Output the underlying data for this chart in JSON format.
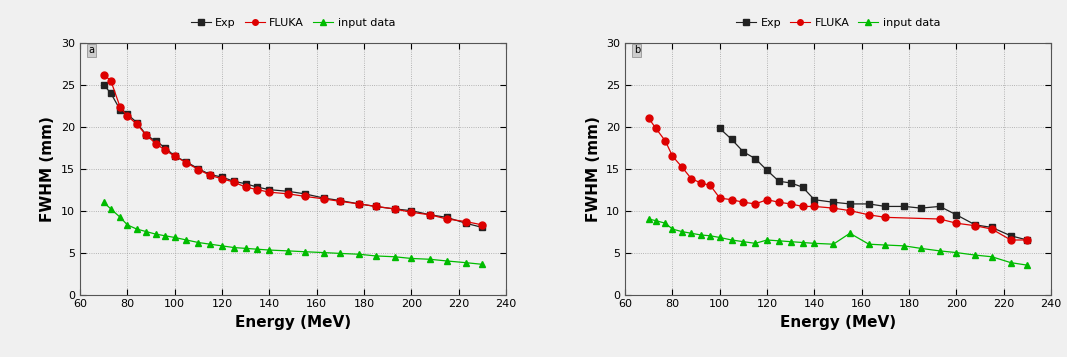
{
  "panel1": {
    "label": "a",
    "energy": [
      70,
      73,
      77,
      80,
      84,
      88,
      92,
      96,
      100,
      105,
      110,
      115,
      120,
      125,
      130,
      135,
      140,
      148,
      155,
      163,
      170,
      178,
      185,
      193,
      200,
      208,
      215,
      223,
      230
    ],
    "exp": [
      25.0,
      24.0,
      22.0,
      21.5,
      20.5,
      19.0,
      18.3,
      17.5,
      16.5,
      15.8,
      15.0,
      14.3,
      14.0,
      13.5,
      13.2,
      12.8,
      12.5,
      12.3,
      12.0,
      11.5,
      11.2,
      10.8,
      10.5,
      10.2,
      10.0,
      9.5,
      9.2,
      8.5,
      8.0
    ],
    "fluka": [
      26.2,
      25.5,
      22.3,
      21.3,
      20.3,
      19.0,
      18.0,
      17.2,
      16.5,
      15.7,
      14.9,
      14.2,
      13.8,
      13.4,
      12.8,
      12.5,
      12.2,
      12.0,
      11.7,
      11.4,
      11.1,
      10.8,
      10.5,
      10.2,
      9.8,
      9.5,
      9.0,
      8.7,
      8.3
    ],
    "input": [
      11.0,
      10.2,
      9.2,
      8.3,
      7.8,
      7.5,
      7.2,
      7.0,
      6.8,
      6.5,
      6.2,
      6.0,
      5.8,
      5.6,
      5.5,
      5.4,
      5.3,
      5.2,
      5.1,
      5.0,
      4.9,
      4.8,
      4.6,
      4.5,
      4.3,
      4.2,
      4.0,
      3.8,
      3.6
    ]
  },
  "panel2": {
    "label": "b",
    "energy_exp": [
      100,
      105,
      110,
      115,
      120,
      125,
      130,
      135,
      140,
      148,
      155,
      163,
      170,
      178,
      185,
      193,
      200,
      208,
      215,
      223,
      230
    ],
    "exp": [
      19.8,
      18.5,
      17.0,
      16.2,
      14.8,
      13.5,
      13.3,
      12.8,
      11.3,
      11.0,
      10.8,
      10.8,
      10.5,
      10.5,
      10.3,
      10.5,
      9.5,
      8.3,
      8.0,
      7.0,
      6.5
    ],
    "energy_fluka": [
      70,
      73,
      77,
      80,
      84,
      88,
      92,
      96,
      100,
      105,
      110,
      115,
      120,
      125,
      130,
      135,
      140,
      148,
      155,
      163,
      170,
      193,
      200,
      208,
      215,
      223,
      230
    ],
    "fluka": [
      21.0,
      19.8,
      18.3,
      16.5,
      15.2,
      13.8,
      13.3,
      13.0,
      11.5,
      11.3,
      11.0,
      10.8,
      11.3,
      11.0,
      10.8,
      10.5,
      10.5,
      10.3,
      10.0,
      9.5,
      9.2,
      9.0,
      8.5,
      8.2,
      7.8,
      6.5,
      6.5
    ],
    "energy_input": [
      70,
      73,
      77,
      80,
      84,
      88,
      92,
      96,
      100,
      105,
      110,
      115,
      120,
      125,
      130,
      135,
      140,
      148,
      155,
      163,
      170,
      178,
      185,
      193,
      200,
      208,
      215,
      223,
      230
    ],
    "input": [
      9.0,
      8.8,
      8.5,
      7.8,
      7.5,
      7.3,
      7.1,
      7.0,
      6.8,
      6.5,
      6.3,
      6.1,
      6.5,
      6.4,
      6.3,
      6.2,
      6.1,
      6.0,
      7.3,
      6.0,
      5.9,
      5.8,
      5.5,
      5.2,
      5.0,
      4.7,
      4.5,
      3.8,
      3.5
    ]
  },
  "exp_color": "#222222",
  "fluka_color": "#dd0000",
  "input_color": "#00bb00",
  "bg_color": "#f0f0f0",
  "ylabel": "FWHM (mm)",
  "xlabel": "Energy (MeV)",
  "ylim": [
    0,
    30
  ],
  "xlim": [
    60,
    240
  ],
  "yticks": [
    0,
    5,
    10,
    15,
    20,
    25,
    30
  ],
  "xticks": [
    60,
    80,
    100,
    120,
    140,
    160,
    180,
    200,
    220,
    240
  ],
  "legend_labels": [
    "Exp",
    "FLUKA",
    "input data"
  ],
  "axis_label_fontsize": 11,
  "tick_fontsize": 8,
  "legend_fontsize": 8,
  "marker_size": 5
}
